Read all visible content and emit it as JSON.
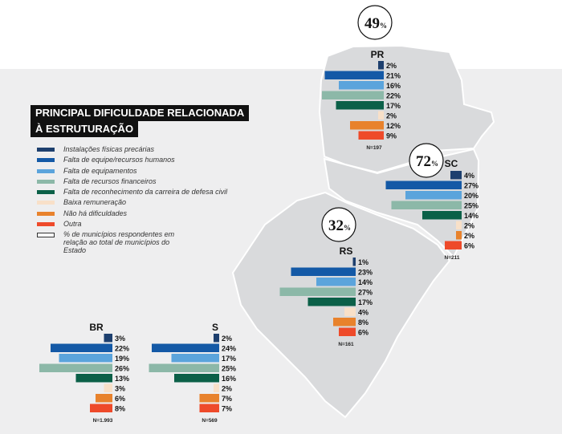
{
  "chart_data": {
    "type": "bar",
    "title": "PRINCIPAL DIFICULDADE RELACIONADA À ESTRUTURAÇÃO",
    "orientation": "horizontal",
    "categories": [
      "Instalações físicas precárias",
      "Falta de equipe/recursos humanos",
      "Falta de equipamentos",
      "Falta de recursos financeiros",
      "Falta de reconhecimento da carreira de defesa civil",
      "Baixa remuneração",
      "Não há dificuldades",
      "Outra"
    ],
    "colors": [
      "#1d3f6e",
      "#1459a6",
      "#5ba4dc",
      "#8cb8a8",
      "#0b6048",
      "#f8e0c8",
      "#e8822c",
      "#ee4a2a"
    ],
    "legend_extra": "% de municípios respondentes em relação ao total de municípios do Estado",
    "series": [
      {
        "name": "PR",
        "values": [
          2,
          21,
          16,
          22,
          17,
          2,
          12,
          9
        ],
        "n": "N=197",
        "respondents": "49"
      },
      {
        "name": "SC",
        "values": [
          4,
          27,
          20,
          25,
          14,
          2,
          2,
          6
        ],
        "n": "N=211",
        "respondents": "72"
      },
      {
        "name": "RS",
        "values": [
          1,
          23,
          14,
          27,
          17,
          4,
          8,
          6
        ],
        "n": "N=161",
        "respondents": "32"
      },
      {
        "name": "BR",
        "values": [
          3,
          22,
          19,
          26,
          13,
          3,
          6,
          8
        ],
        "n": "N=1.993"
      },
      {
        "name": "S",
        "values": [
          2,
          24,
          17,
          25,
          16,
          2,
          7,
          7
        ],
        "n": "N=569"
      }
    ],
    "unit": "%"
  }
}
